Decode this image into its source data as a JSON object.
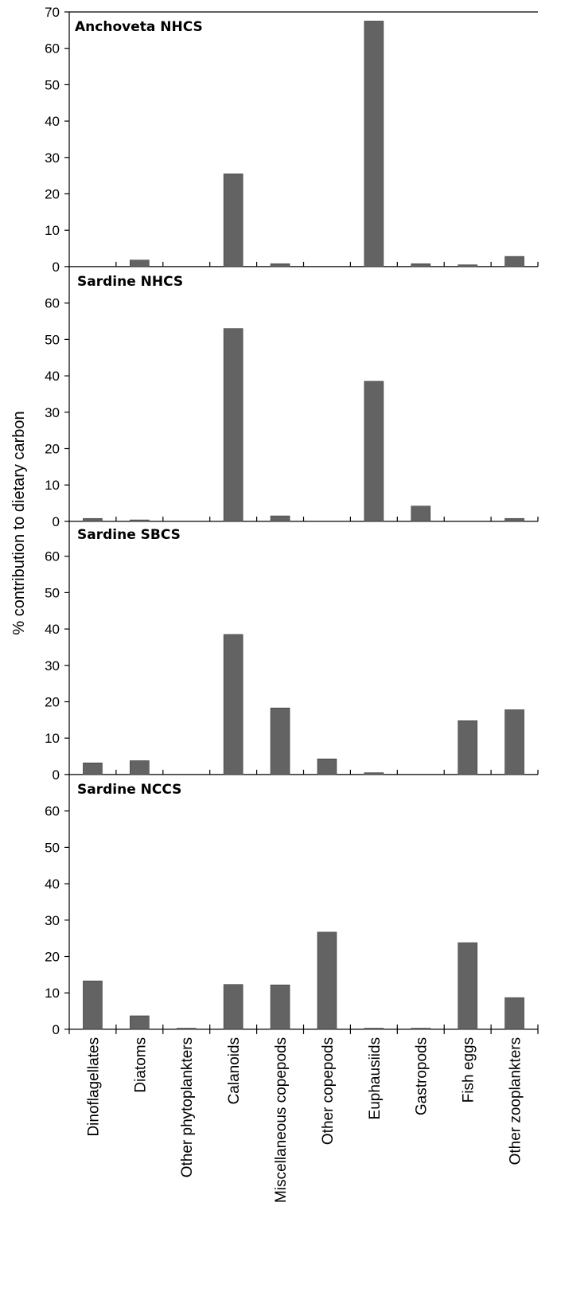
{
  "chart_data": {
    "type": "bar",
    "ylabel": "% contribution to dietary carbon",
    "categories": [
      "Dinoflagellates",
      "Diatoms",
      "Other phytoplankters",
      "Calanoids",
      "Miscellaneous copepods",
      "Other copepods",
      "Euphausiids",
      "Gastropods",
      "Fish eggs",
      "Other zooplankters"
    ],
    "bar_color": "#636363",
    "panels": [
      {
        "title": "Anchoveta NHCS",
        "ylim": [
          0,
          70
        ],
        "yticks": [
          0,
          10,
          20,
          30,
          40,
          50,
          60,
          70
        ],
        "values": [
          0,
          1.8,
          0,
          25.5,
          0.8,
          0,
          67.5,
          0.8,
          0.5,
          2.8
        ]
      },
      {
        "title": "Sardine NHCS",
        "ylim": [
          0,
          70
        ],
        "yticks": [
          0,
          10,
          20,
          30,
          40,
          50,
          60
        ],
        "values": [
          0.8,
          0.4,
          0,
          53,
          1.5,
          0,
          38.5,
          4.2,
          0,
          0.8
        ]
      },
      {
        "title": "Sardine SBCS",
        "ylim": [
          0,
          70
        ],
        "yticks": [
          0,
          10,
          20,
          30,
          40,
          50,
          60
        ],
        "values": [
          3.2,
          3.8,
          0,
          38.5,
          18.3,
          4.3,
          0.5,
          0,
          14.8,
          17.8
        ]
      },
      {
        "title": "Sardine NCCS",
        "ylim": [
          0,
          70
        ],
        "yticks": [
          0,
          10,
          20,
          30,
          40,
          50,
          60
        ],
        "values": [
          13.3,
          3.7,
          0.3,
          12.3,
          12.2,
          26.7,
          0.3,
          0.3,
          23.8,
          8.7
        ]
      }
    ]
  }
}
